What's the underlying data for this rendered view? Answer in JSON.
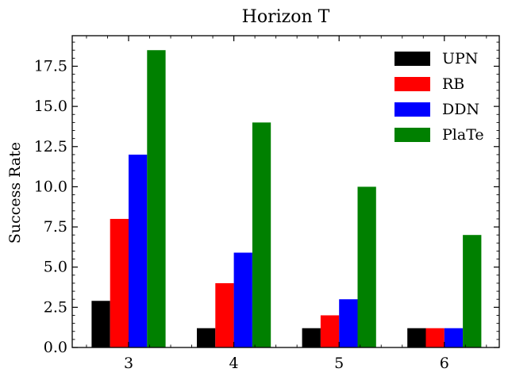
{
  "chart_data": {
    "type": "bar",
    "title": "Horizon T",
    "xlabel": "",
    "ylabel": "Success Rate",
    "categories": [
      "3",
      "4",
      "5",
      "6"
    ],
    "ylim": [
      0,
      19.4
    ],
    "yticks": [
      "0.0",
      "2.5",
      "5.0",
      "7.5",
      "10.0",
      "12.5",
      "15.0",
      "17.5"
    ],
    "ytick_values": [
      0,
      2.5,
      5,
      7.5,
      10,
      12.5,
      15,
      17.5
    ],
    "legend_position": "top-right",
    "grid": false,
    "series": [
      {
        "name": "UPN",
        "color": "#000000",
        "values": [
          2.9,
          1.2,
          1.2,
          1.2
        ]
      },
      {
        "name": "RB",
        "color": "#ff0000",
        "values": [
          8.0,
          4.0,
          2.0,
          1.2
        ]
      },
      {
        "name": "DDN",
        "color": "#0000ff",
        "values": [
          12.0,
          5.9,
          3.0,
          1.2
        ]
      },
      {
        "name": "PlaTe",
        "color": "#008000",
        "values": [
          18.5,
          14.0,
          10.0,
          7.0
        ]
      }
    ]
  }
}
